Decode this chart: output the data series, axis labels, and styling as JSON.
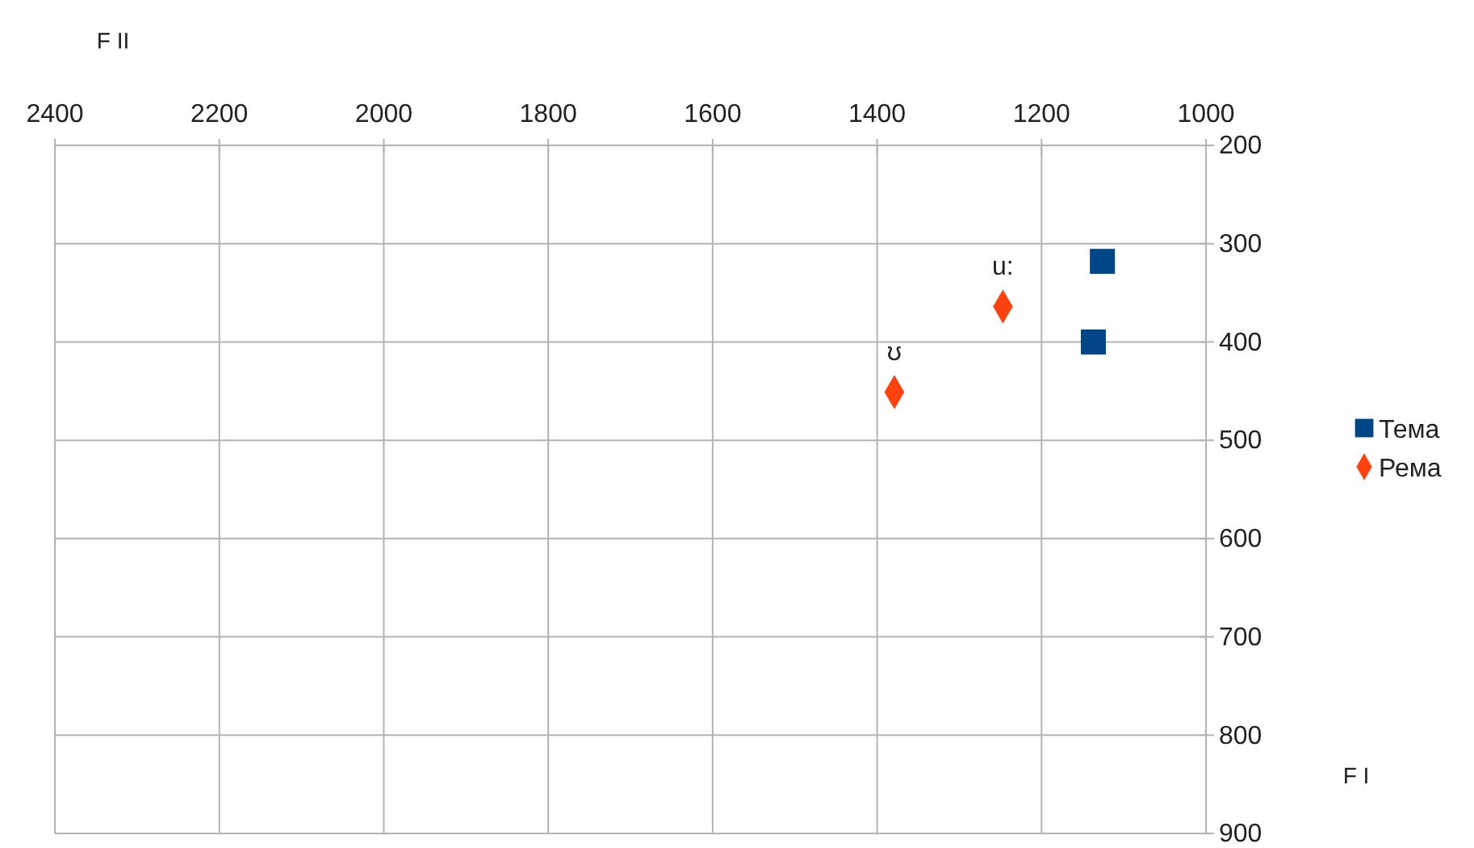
{
  "chart_data": {
    "type": "scatter",
    "xlabel": "F II",
    "ylabel": "F I",
    "series": [
      {
        "name": "Тема",
        "color": "#004586",
        "marker": "square",
        "x": [
          1126,
          1137
        ],
        "values": [
          318,
          400
        ]
      },
      {
        "name": "Рема",
        "color": "#ff420e",
        "marker": "diamond",
        "x": [
          1247,
          1379
        ],
        "values": [
          364,
          451
        ]
      }
    ],
    "annotations": [
      {
        "text": "u:",
        "x": 1247,
        "y": 364
      },
      {
        "text": "ʊ",
        "x": 1379,
        "y": 451
      }
    ],
    "xlim": [
      2400,
      1000
    ],
    "xticks": [
      2400,
      2200,
      2000,
      1800,
      1600,
      1400,
      1200,
      1000
    ],
    "ylim": [
      900,
      200
    ],
    "yticks": [
      200,
      300,
      400,
      500,
      600,
      700,
      800,
      900
    ],
    "grid": true,
    "legend": "right"
  }
}
